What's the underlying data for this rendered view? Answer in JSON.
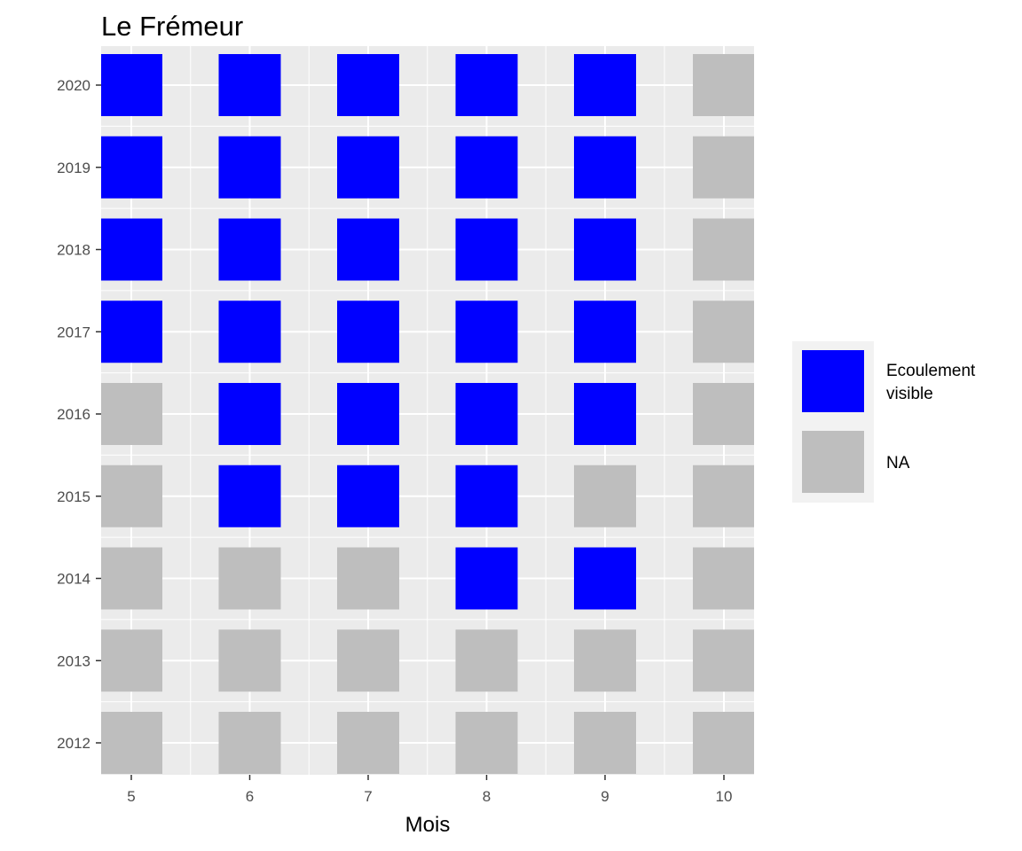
{
  "chart_data": {
    "type": "heatmap",
    "title": "Le Frémeur",
    "xlabel": "Mois",
    "ylabel": "",
    "x": [
      5,
      6,
      7,
      8,
      9,
      10
    ],
    "y": [
      2012,
      2013,
      2014,
      2015,
      2016,
      2017,
      2018,
      2019,
      2020
    ],
    "status": {
      "2012": [
        "NA",
        "NA",
        "NA",
        "NA",
        "NA",
        "NA"
      ],
      "2013": [
        "NA",
        "NA",
        "NA",
        "NA",
        "NA",
        "NA"
      ],
      "2014": [
        "NA",
        "NA",
        "NA",
        "Ecoulement visible",
        "Ecoulement visible",
        "NA"
      ],
      "2015": [
        "NA",
        "Ecoulement visible",
        "Ecoulement visible",
        "Ecoulement visible",
        "NA",
        "NA"
      ],
      "2016": [
        "NA",
        "Ecoulement visible",
        "Ecoulement visible",
        "Ecoulement visible",
        "Ecoulement visible",
        "NA"
      ],
      "2017": [
        "Ecoulement visible",
        "Ecoulement visible",
        "Ecoulement visible",
        "Ecoulement visible",
        "Ecoulement visible",
        "NA"
      ],
      "2018": [
        "Ecoulement visible",
        "Ecoulement visible",
        "Ecoulement visible",
        "Ecoulement visible",
        "Ecoulement visible",
        "NA"
      ],
      "2019": [
        "Ecoulement visible",
        "Ecoulement visible",
        "Ecoulement visible",
        "Ecoulement visible",
        "Ecoulement visible",
        "NA"
      ],
      "2020": [
        "Ecoulement visible",
        "Ecoulement visible",
        "Ecoulement visible",
        "Ecoulement visible",
        "Ecoulement visible",
        "NA"
      ]
    },
    "legend": {
      "position": "right",
      "entries": [
        {
          "label": "Ecoulement visible",
          "color": "#0000ff"
        },
        {
          "label": "NA",
          "color": "#bebebe"
        }
      ]
    },
    "grid": true,
    "panel_background": "#ebebeb",
    "grid_color": "#ffffff"
  }
}
